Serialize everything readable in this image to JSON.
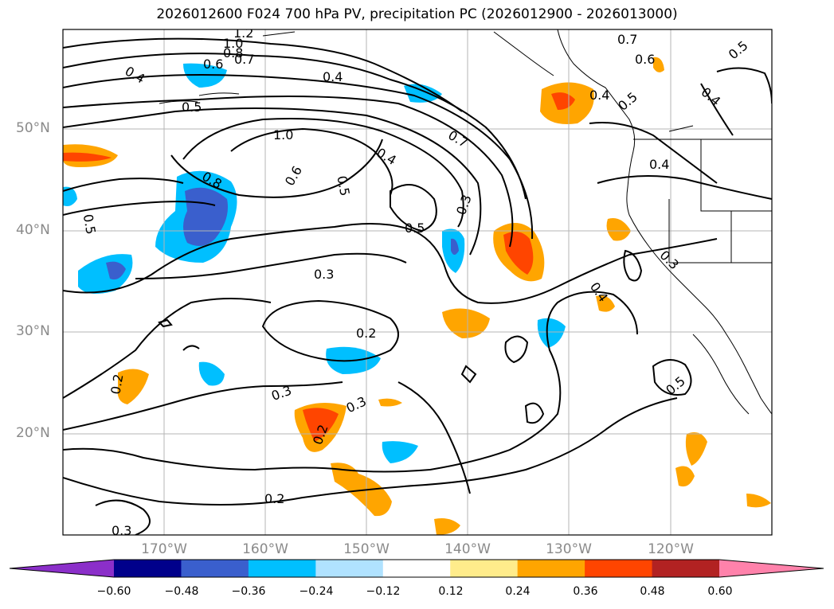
{
  "title": "2026012600 F024 700 hPa PV, precipitation PC (2026012900 - 2026013000)",
  "lat_labels": [
    "50°N",
    "40°N",
    "30°N",
    "20°N"
  ],
  "lon_labels": [
    "170°W",
    "160°W",
    "150°W",
    "140°W",
    "130°W",
    "120°W"
  ],
  "colorbar": {
    "ticks": [
      "−0.60",
      "−0.48",
      "−0.36",
      "−0.24",
      "−0.12",
      "0.12",
      "0.24",
      "0.36",
      "0.48",
      "0.60"
    ],
    "colors": [
      "#8b2fc9",
      "#00008b",
      "#3a5fcd",
      "#00bfff",
      "#b0e2ff",
      "#ffffff",
      "#ffec8b",
      "#ffa500",
      "#ff4500",
      "#b22222",
      "#ff82ab"
    ]
  },
  "contour_labels": [
    "1.2",
    "1.0",
    "0.8",
    "0.7",
    "0.6",
    "0.4",
    "0.4",
    "0.5",
    "1.0",
    "0.7",
    "0.4",
    "0.6",
    "0.5",
    "0.8",
    "0.5",
    "0.5",
    "0.3",
    "0.3",
    "0.2",
    "0.3",
    "0.3",
    "0.2",
    "0.2",
    "0.2",
    "0.3",
    "0.7",
    "0.6",
    "0.4",
    "0.5",
    "0.4",
    "0.4",
    "0.3",
    "0.4",
    "0.5",
    "0.5"
  ],
  "colors": {
    "coast": "#000000",
    "grid": "#b4b4b4",
    "tick_label": "#8a8a8a"
  }
}
